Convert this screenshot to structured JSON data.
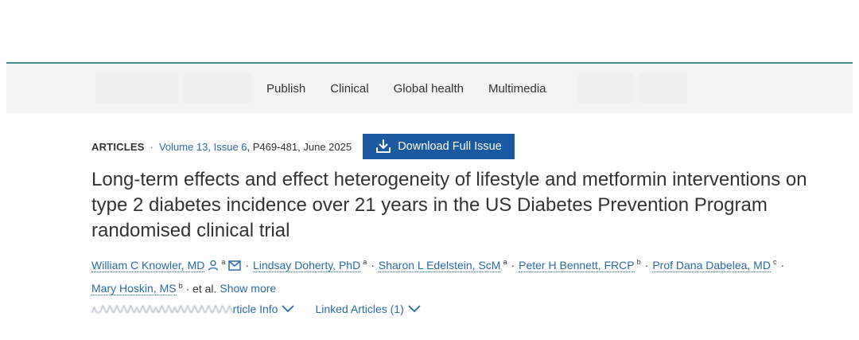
{
  "nav": {
    "items": [
      "Publish",
      "Clinical",
      "Global health",
      "Multimedia"
    ]
  },
  "article": {
    "type": "ARTICLES",
    "separator": "·",
    "volume_issue": "Volume 13, Issue 6",
    "pages_date": ", P469-481, June 2025",
    "download_label": "Download Full Issue",
    "title": "Long-term effects and effect heterogeneity of lifestyle and metformin interventions on type 2 diabetes incidence over 21 years in the US Diabetes Prevention Program randomised clinical trial"
  },
  "authors": [
    {
      "name": "William C Knowler, MD",
      "aff": "a"
    },
    {
      "name": "Lindsay Doherty, PhD",
      "aff": "a"
    },
    {
      "name": "Sharon L Edelstein, ScM",
      "aff": "a"
    },
    {
      "name": "Peter H Bennett, FRCP",
      "aff": "b"
    },
    {
      "name": "Prof Dana Dabelea, MD",
      "aff": "c"
    },
    {
      "name": "Mary Hoskin, MS",
      "aff": "b"
    }
  ],
  "authors_suffix": "· et al.",
  "show_more_label": "Show more",
  "info": {
    "blurred_text": "ʌ,ɅɅɅɅɅʌɅɅʌɅɅʌɅɅɅɅɅɅɅɅ",
    "article_info_label": "rticle Info",
    "linked_articles_label": "Linked Articles (1)"
  },
  "colors": {
    "accent_line": "#3f8f8c",
    "link": "#2a6aa6",
    "button": "#1b5aa1"
  },
  "icons": [
    "download-icon",
    "person-icon",
    "envelope-icon",
    "chevron-down-icon"
  ]
}
